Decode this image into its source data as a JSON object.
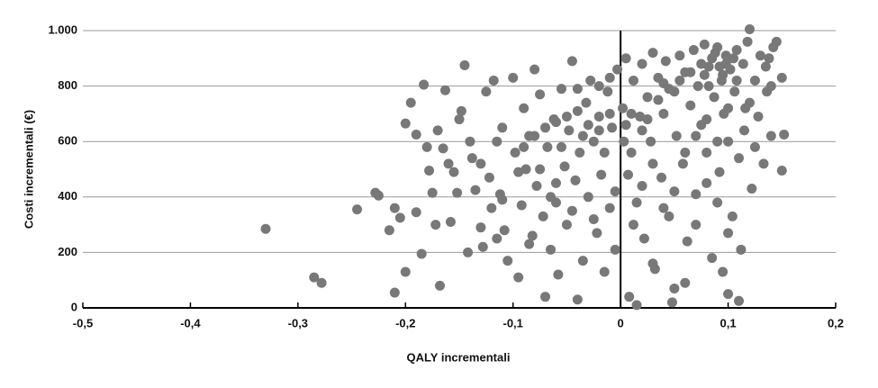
{
  "chart_data": {
    "type": "scatter",
    "x_label": "QALY incrementali",
    "y_label": "Costi incrementali (€)",
    "color": "#787878",
    "grid": true,
    "xlim": [
      -0.5,
      0.2
    ],
    "xticks": [
      {
        "value": -0.5,
        "label": "-0,5"
      },
      {
        "value": -0.4,
        "label": "-0,4"
      },
      {
        "value": -0.3,
        "label": "-0,3"
      },
      {
        "value": -0.2,
        "label": "-0,2"
      },
      {
        "value": -0.1,
        "label": "-0,1"
      },
      0,
      {
        "value": 0.1,
        "label": "0,1"
      },
      {
        "value": 0.2,
        "label": "0,2"
      }
    ],
    "ylim": [
      0,
      1000
    ],
    "yticks": [
      0,
      200,
      400,
      600,
      800,
      {
        "value": 1000,
        "label": "1.000"
      }
    ],
    "x": [
      -0.33,
      -0.285,
      -0.278,
      -0.245,
      -0.228,
      -0.225,
      -0.215,
      -0.21,
      -0.21,
      -0.205,
      -0.2,
      -0.2,
      -0.195,
      -0.19,
      -0.19,
      -0.185,
      -0.183,
      -0.18,
      -0.178,
      -0.175,
      -0.172,
      -0.17,
      -0.168,
      -0.165,
      -0.163,
      -0.16,
      -0.158,
      -0.155,
      -0.152,
      -0.15,
      -0.148,
      -0.145,
      -0.142,
      -0.14,
      -0.138,
      -0.135,
      -0.13,
      -0.128,
      -0.125,
      -0.122,
      -0.12,
      -0.118,
      -0.115,
      -0.112,
      -0.11,
      -0.108,
      -0.105,
      -0.1,
      -0.098,
      -0.095,
      -0.092,
      -0.09,
      -0.088,
      -0.085,
      -0.082,
      -0.08,
      -0.078,
      -0.075,
      -0.072,
      -0.07,
      -0.068,
      -0.065,
      -0.062,
      -0.06,
      -0.058,
      -0.055,
      -0.052,
      -0.05,
      -0.048,
      -0.045,
      -0.042,
      -0.04,
      -0.038,
      -0.035,
      -0.032,
      -0.03,
      -0.028,
      -0.025,
      -0.022,
      -0.02,
      -0.018,
      -0.015,
      -0.012,
      -0.01,
      -0.008,
      -0.005,
      -0.003,
      -0.09,
      -0.08,
      -0.07,
      -0.06,
      -0.05,
      -0.04,
      -0.03,
      -0.02,
      -0.01,
      -0.095,
      -0.075,
      -0.055,
      -0.035,
      -0.015,
      -0.065,
      -0.045,
      -0.025,
      -0.005,
      -0.11,
      -0.13,
      -0.115,
      -0.085,
      -0.06,
      -0.04,
      -0.02,
      -0.01,
      0.002,
      0.005,
      0.008,
      0.01,
      0.012,
      0.015,
      0.018,
      0.02,
      0.022,
      0.025,
      0.028,
      0.03,
      0.032,
      0.035,
      0.038,
      0.04,
      0.042,
      0.045,
      0.048,
      0.05,
      0.052,
      0.055,
      0.058,
      0.06,
      0.062,
      0.065,
      0.068,
      0.07,
      0.072,
      0.075,
      0.078,
      0.08,
      0.082,
      0.085,
      0.087,
      0.09,
      0.092,
      0.094,
      0.096,
      0.098,
      0.1,
      0.102,
      0.104,
      0.106,
      0.108,
      0.11,
      0.112,
      0.114,
      0.116,
      0.118,
      0.12,
      0.122,
      0.125,
      0.128,
      0.13,
      0.133,
      0.136,
      0.14,
      0.142,
      0.145,
      0.15,
      0.152,
      0.15,
      0.11,
      0.1,
      0.095,
      0.05,
      0.03,
      0.015,
      0.06,
      0.07,
      0.08,
      0.09,
      0.1,
      0.115,
      0.12,
      0.125,
      0.135,
      0.138,
      0.14,
      0.085,
      0.088,
      0.092,
      0.095,
      0.098,
      0.105,
      0.108,
      0.075,
      0.078,
      0.082,
      0.065,
      0.055,
      0.045,
      0.04,
      0.035,
      0.025,
      0.02,
      0.01,
      0.005,
      0.003,
      0.007,
      0.012,
      0.02,
      0.03,
      0.04,
      0.05,
      0.06,
      0.07,
      0.08,
      0.09,
      0.1
    ],
    "values": [
      285,
      110,
      90,
      355,
      415,
      405,
      280,
      360,
      55,
      325,
      130,
      665,
      740,
      625,
      345,
      195,
      805,
      580,
      495,
      415,
      300,
      640,
      80,
      575,
      785,
      520,
      310,
      490,
      415,
      680,
      710,
      875,
      200,
      600,
      540,
      425,
      290,
      220,
      780,
      470,
      360,
      820,
      600,
      410,
      650,
      280,
      170,
      830,
      560,
      110,
      370,
      720,
      500,
      620,
      260,
      860,
      440,
      770,
      330,
      40,
      580,
      210,
      680,
      380,
      120,
      790,
      510,
      300,
      640,
      890,
      460,
      30,
      560,
      170,
      740,
      400,
      820,
      600,
      270,
      690,
      480,
      130,
      780,
      360,
      650,
      210,
      860,
      580,
      620,
      650,
      670,
      690,
      710,
      660,
      640,
      700,
      490,
      500,
      580,
      620,
      560,
      400,
      350,
      320,
      420,
      390,
      520,
      250,
      230,
      450,
      790,
      800,
      830,
      720,
      900,
      40,
      560,
      820,
      380,
      690,
      880,
      250,
      760,
      600,
      920,
      140,
      830,
      470,
      700,
      890,
      330,
      20,
      780,
      620,
      910,
      520,
      850,
      240,
      730,
      930,
      410,
      800,
      660,
      950,
      560,
      870,
      180,
      760,
      940,
      490,
      820,
      700,
      910,
      600,
      860,
      330,
      780,
      930,
      540,
      210,
      880,
      720,
      960,
      1005,
      430,
      820,
      690,
      910,
      520,
      780,
      620,
      940,
      960,
      830,
      625,
      495,
      25,
      50,
      130,
      70,
      160,
      10,
      90,
      300,
      450,
      380,
      270,
      640,
      740,
      580,
      870,
      900,
      800,
      900,
      920,
      870,
      840,
      880,
      900,
      820,
      880,
      840,
      800,
      850,
      820,
      790,
      810,
      750,
      680,
      640,
      700,
      660,
      600,
      480,
      300,
      440,
      520,
      360,
      420,
      560,
      620,
      680,
      600,
      720
    ]
  }
}
